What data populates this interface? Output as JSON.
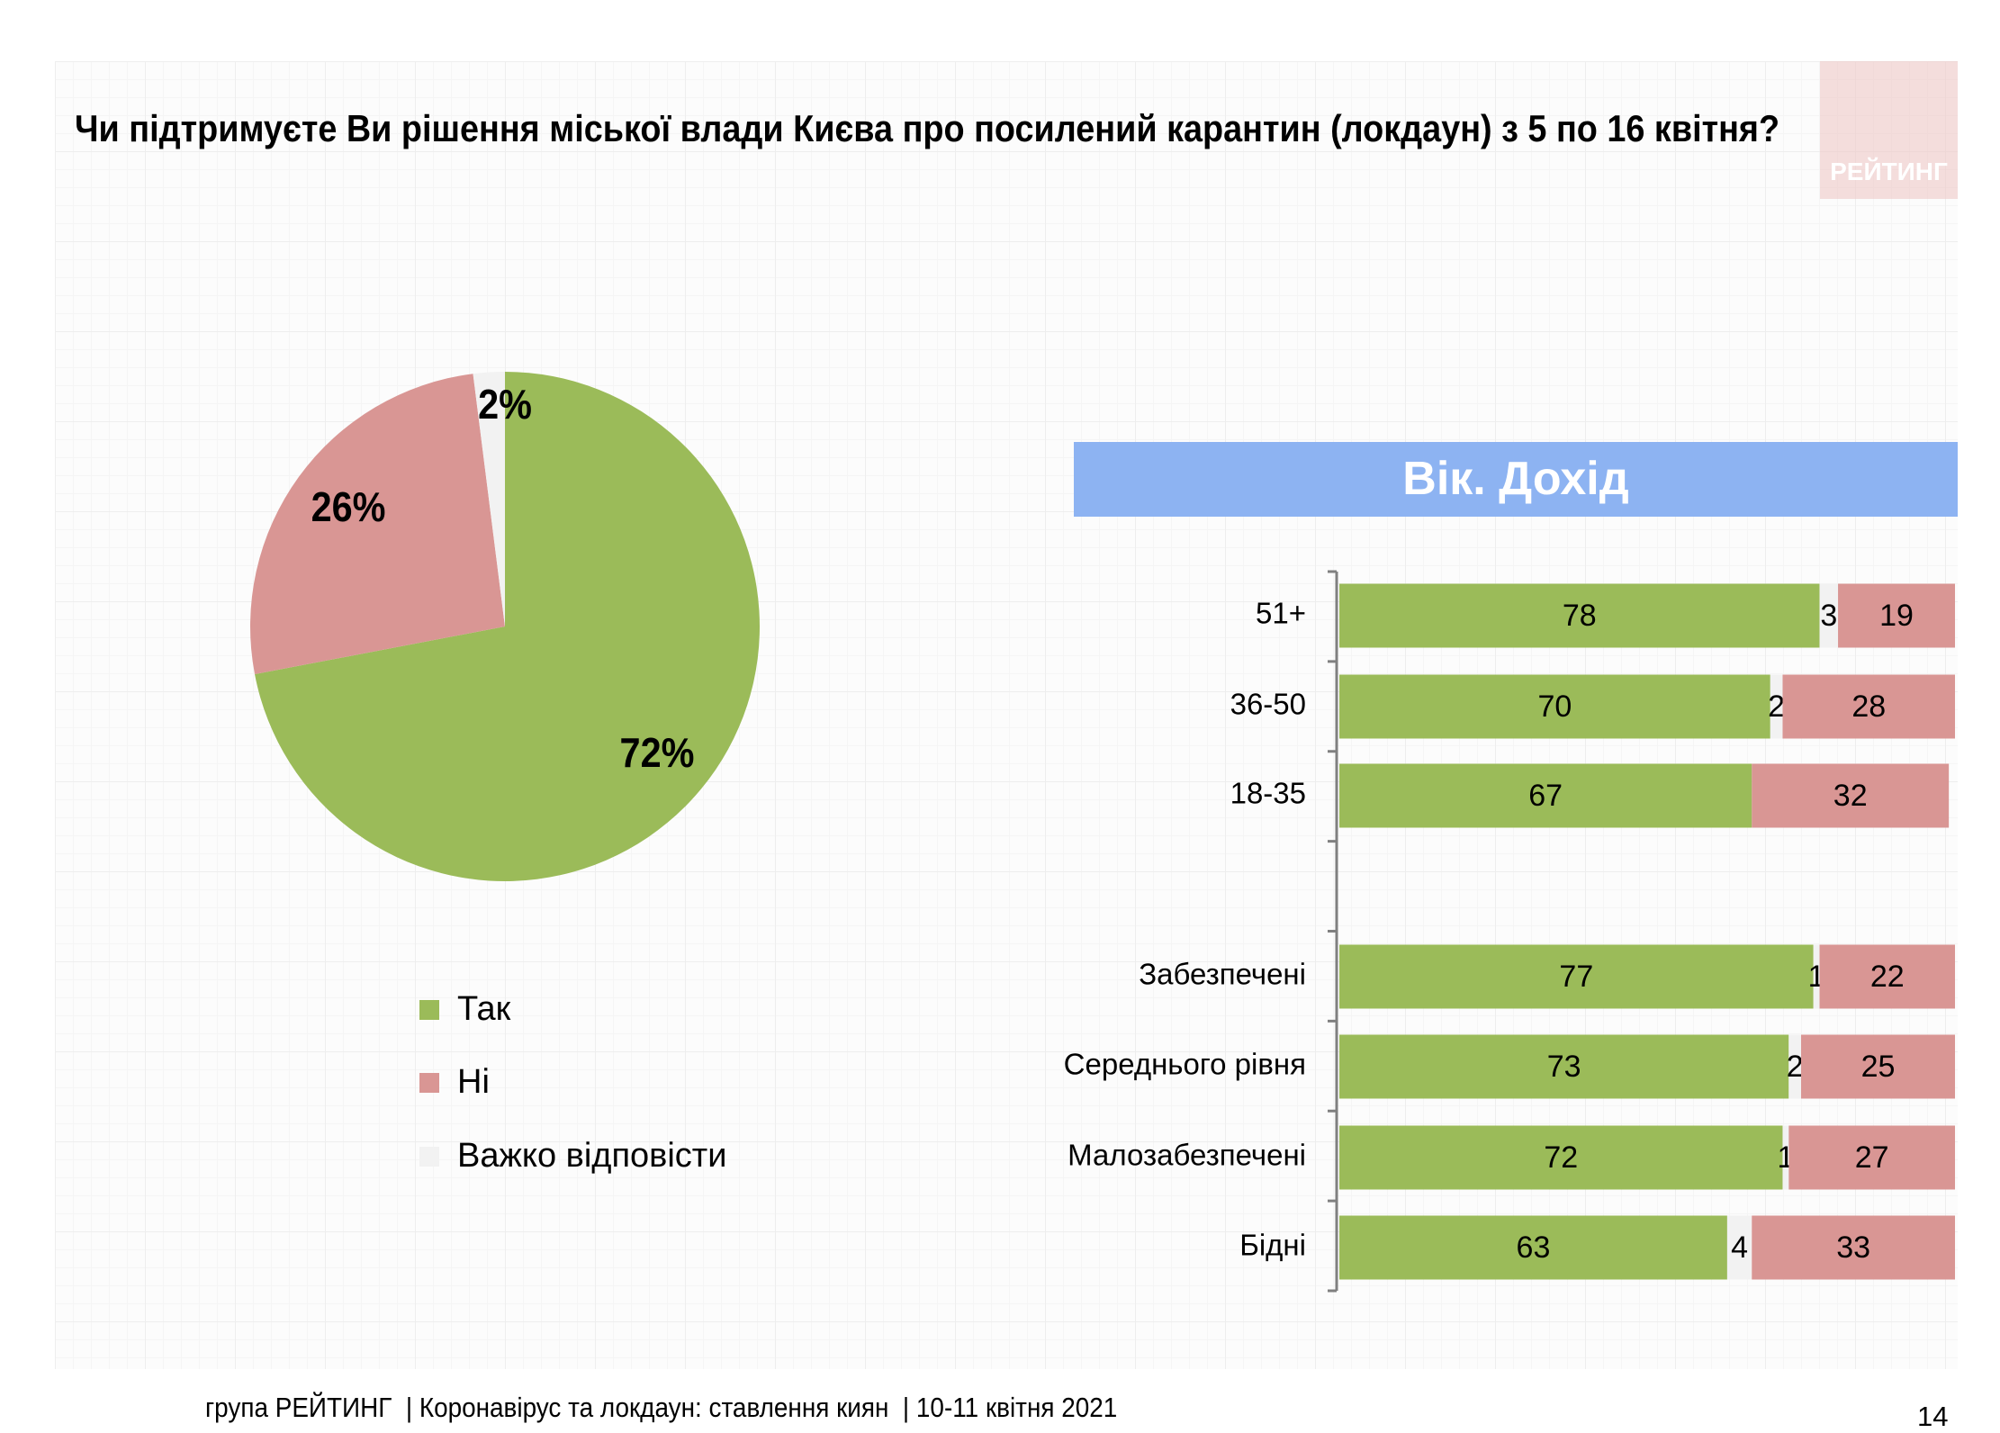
{
  "title": "Чи підтримуєте Ви рішення міської влади Києва про посилений карантин (локдаун) з 5 по 16 квітня?",
  "logo_text": "РЕЙТИНГ",
  "footer": {
    "text": "група РЕЙТИНГ  | Коронавірус та локдаун: ставлення киян  | 10-11 квітня 2021",
    "page_number": "14"
  },
  "colors": {
    "yes": "#9BBB59",
    "no": "#D99694",
    "hard": "#F2F2F2",
    "banner": "#8DB3F2"
  },
  "chart_data": [
    {
      "type": "pie",
      "categories": [
        "Так",
        "Ні",
        "Важко відповісти"
      ],
      "values": [
        72,
        26,
        2
      ],
      "labels": [
        "72%",
        "26%",
        "2%"
      ],
      "legend": [
        "Так",
        "Ні",
        "Важко відповісти"
      ],
      "legend_placement": "bottom"
    },
    {
      "type": "bar",
      "orientation": "horizontal-stacked",
      "title": "Вік. Дохід",
      "categories": [
        "51+",
        "36-50",
        "18-35",
        "",
        "Забезпечені",
        "Середнього рівня",
        "Малозабезпечені",
        "Бідні"
      ],
      "series": [
        {
          "name": "Так",
          "values": [
            78,
            70,
            67,
            null,
            77,
            73,
            72,
            63
          ]
        },
        {
          "name": "Важко відповісти",
          "values": [
            3,
            2,
            0,
            null,
            1,
            2,
            1,
            4
          ]
        },
        {
          "name": "Ні",
          "values": [
            19,
            28,
            32,
            null,
            22,
            25,
            27,
            33
          ]
        }
      ],
      "xlim": [
        0,
        100
      ]
    }
  ]
}
